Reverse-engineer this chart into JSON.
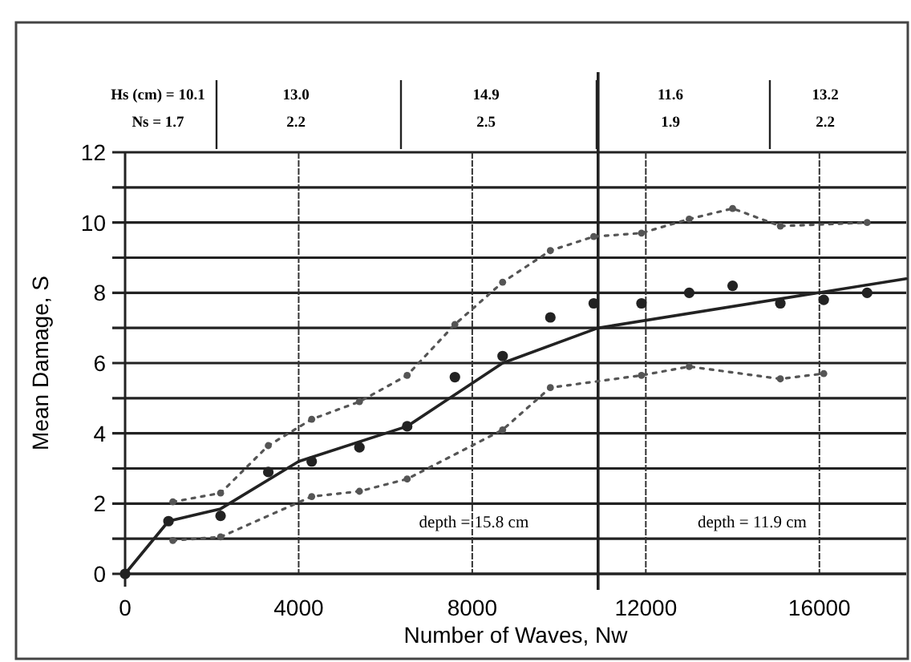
{
  "chart_data": {
    "type": "line",
    "xlabel": "Number of Waves, Nw",
    "ylabel": "Mean Damage, S",
    "xlim": [
      0,
      18000
    ],
    "xticks": [
      0,
      4000,
      8000,
      12000,
      16000
    ],
    "ylim": [
      0,
      12
    ],
    "yticks": [
      0,
      {
        "value": 1,
        "label": null
      },
      2,
      {
        "value": 3,
        "label": null
      },
      4,
      {
        "value": 5,
        "label": null
      },
      6,
      {
        "value": 7,
        "label": null
      },
      8,
      {
        "value": 9,
        "label": null
      },
      10,
      {
        "value": 11,
        "label": null
      },
      12
    ],
    "grid": true,
    "series": [
      {
        "color": "#222222",
        "line_style": "solid",
        "marker": "none",
        "x": [
          0,
          1000,
          2200,
          4000,
          6500,
          8700,
          10900,
          18000
        ],
        "values": [
          0,
          1.5,
          1.85,
          3.2,
          4.2,
          6.0,
          7.0,
          8.4
        ]
      },
      {
        "type": "line",
        "color": "#555555",
        "line_style": "dotted",
        "marker": "circle",
        "x": [
          1100,
          2200,
          3300,
          4300,
          5400,
          6500,
          7600,
          8700,
          9800,
          10800,
          11900,
          13000,
          14000,
          15100,
          17100
        ],
        "values": [
          2.05,
          2.3,
          3.65,
          4.4,
          4.9,
          5.65,
          7.1,
          8.3,
          9.2,
          9.6,
          9.7,
          10.1,
          10.4,
          9.9,
          10.0
        ]
      },
      {
        "type": "line",
        "color": "#555555",
        "line_style": "dotted",
        "marker": "circle",
        "x": [
          1100,
          2200,
          4300,
          5400,
          6500,
          8700,
          9800,
          11900,
          13000,
          15100,
          16100
        ],
        "values": [
          0.95,
          1.05,
          2.2,
          2.35,
          2.7,
          4.1,
          5.3,
          5.65,
          5.9,
          5.55,
          5.7
        ]
      },
      {
        "type": "scatter",
        "color": "#222222",
        "marker": "circle",
        "x": [
          0,
          1000,
          2200,
          3300,
          4300,
          5400,
          6500,
          7600,
          8700,
          9800,
          10800,
          11900,
          13000,
          14000,
          15100,
          16100,
          17100
        ],
        "values": [
          0,
          1.5,
          1.65,
          2.9,
          3.2,
          3.6,
          4.2,
          5.6,
          6.2,
          7.3,
          7.7,
          7.7,
          8.0,
          8.2,
          7.7,
          7.8,
          8.0
        ]
      }
    ],
    "ref_lines": [
      {
        "axis": "x",
        "value": 10900,
        "color": "#222222",
        "line_style": "solid"
      }
    ],
    "annotations": [
      "Hs (cm) = 10.1\nNs = 1.7",
      "13.0\n2.2",
      "14.9\n2.5",
      "11.6\n1.9",
      "13.2\n2.2",
      "depth = 15.8 cm",
      "depth = 11.9 cm"
    ]
  }
}
